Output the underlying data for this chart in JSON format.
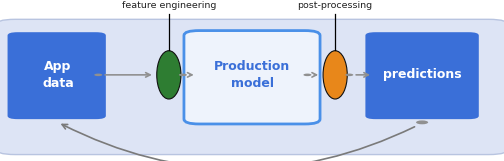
{
  "bg_color": "#ffffff",
  "panel_color": "#dde4f5",
  "panel_border_color": "#b8c4e0",
  "box_blue_color": "#3a6fd8",
  "production_border": "#4a90e8",
  "production_bg": "#eef3fc",
  "production_text_color": "#3a6fd8",
  "green_color": "#2e7d32",
  "orange_color": "#e8871a",
  "arrow_color": "#7a7a7a",
  "connector_color": "#909090",
  "line_color": "#333333",
  "text_color": "#222222",
  "label1": "Data processing and\nfeature engineering",
  "label2": "Prediction\npost-processing",
  "box1_text": "App\ndata",
  "box2_text": "Production\nmodel",
  "box3_text": "predictions"
}
